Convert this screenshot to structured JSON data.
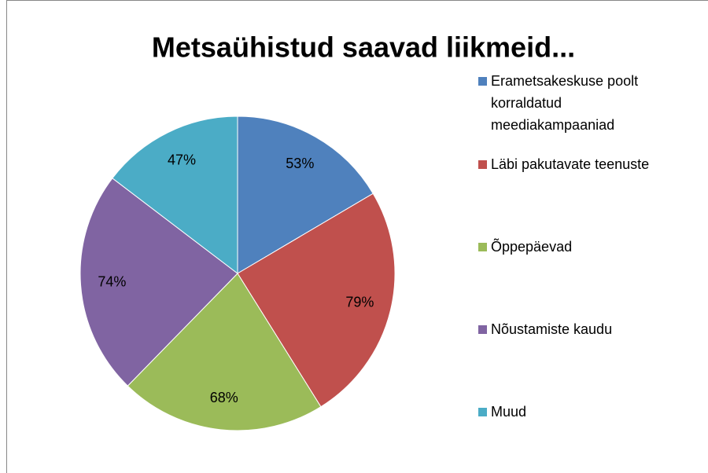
{
  "chart_data": {
    "type": "pie",
    "title": "Metsaühistud saavad liikmeid...",
    "categories": [
      "Erametsakeskuse poolt korraldatud meediakampaaniad",
      "Läbi pakutavate teenuste",
      "Õppepäevad",
      "Nõustamiste kaudu",
      "Muud"
    ],
    "values": [
      53,
      79,
      68,
      74,
      47
    ],
    "value_labels": [
      "53%",
      "79%",
      "68%",
      "74%",
      "47%"
    ],
    "colors": [
      "#4f81bd",
      "#c0504d",
      "#9bbb59",
      "#8064a2",
      "#4bacc6"
    ],
    "legend": "right"
  }
}
